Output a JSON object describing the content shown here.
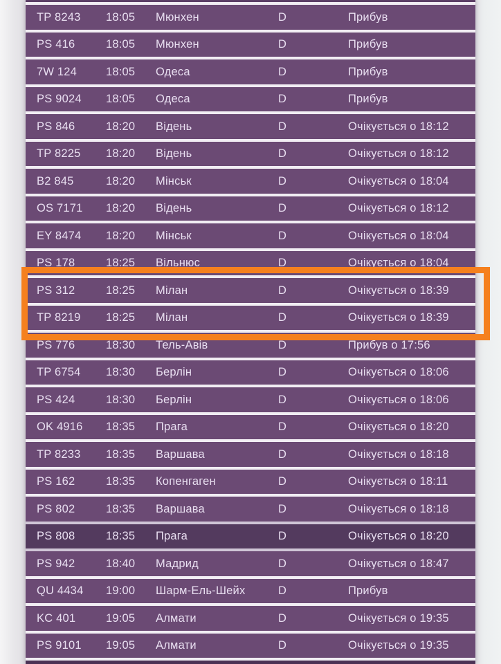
{
  "app": {
    "description": "Airport arrivals timetable (Ukrainian)",
    "language": "uk"
  },
  "colors": {
    "page-bg": "#e9e8eb",
    "row-purple": "#6b4a74",
    "row-selected": "#533a5e",
    "row-dark": "#5c3f66",
    "row-bottom": "#4b3255",
    "sep": "#f1edf3",
    "sep-dim": "#cfc5d6",
    "text-light": "#e8def0",
    "accent-orange": "#f5801e"
  },
  "highlight": {
    "note": "orange annotation rectangle around the two Milan flights",
    "rows": [
      "PS 312",
      "TP 8219"
    ]
  },
  "table": {
    "columns": [
      "flight",
      "time",
      "city",
      "terminal",
      "status"
    ],
    "rows": [
      {
        "flight": "TP 8243",
        "time": "18:05",
        "city": "Мюнхен",
        "terminal": "D",
        "status": "Прибув"
      },
      {
        "flight": "PS 416",
        "time": "18:05",
        "city": "Мюнхен",
        "terminal": "D",
        "status": "Прибув"
      },
      {
        "flight": "7W 124",
        "time": "18:05",
        "city": "Одеса",
        "terminal": "D",
        "status": "Прибув"
      },
      {
        "flight": "PS 9024",
        "time": "18:05",
        "city": "Одеса",
        "terminal": "D",
        "status": "Прибув"
      },
      {
        "flight": "PS 846",
        "time": "18:20",
        "city": "Відень",
        "terminal": "D",
        "status": "Очікується о 18:12"
      },
      {
        "flight": "TP 8225",
        "time": "18:20",
        "city": "Відень",
        "terminal": "D",
        "status": "Очікується о 18:12"
      },
      {
        "flight": "B2 845",
        "time": "18:20",
        "city": "Мінськ",
        "terminal": "D",
        "status": "Очікується о 18:04"
      },
      {
        "flight": "OS 7171",
        "time": "18:20",
        "city": "Відень",
        "terminal": "D",
        "status": "Очікується о 18:12"
      },
      {
        "flight": "EY 8474",
        "time": "18:20",
        "city": "Мінськ",
        "terminal": "D",
        "status": "Очікується о 18:04"
      },
      {
        "flight": "PS 178",
        "time": "18:25",
        "city": "Вільнюс",
        "terminal": "D",
        "status": "Очікується о 18:04"
      },
      {
        "flight": "PS 312",
        "time": "18:25",
        "city": "Мілан",
        "terminal": "D",
        "status": "Очікується о 18:39",
        "highlighted": true
      },
      {
        "flight": "TP 8219",
        "time": "18:25",
        "city": "Мілан",
        "terminal": "D",
        "status": "Очікується о 18:39",
        "highlighted": true
      },
      {
        "flight": "PS 776",
        "time": "18:30",
        "city": "Тель-Авів",
        "terminal": "D",
        "status": "Прибув о 17:56"
      },
      {
        "flight": "TP 6754",
        "time": "18:30",
        "city": "Берлін",
        "terminal": "D",
        "status": "Очікується о 18:06"
      },
      {
        "flight": "PS 424",
        "time": "18:30",
        "city": "Берлін",
        "terminal": "D",
        "status": "Очікується о 18:06"
      },
      {
        "flight": "OK 4916",
        "time": "18:35",
        "city": "Прага",
        "terminal": "D",
        "status": "Очікується о 18:20"
      },
      {
        "flight": "TP 8233",
        "time": "18:35",
        "city": "Варшава",
        "terminal": "D",
        "status": "Очікується о 18:18"
      },
      {
        "flight": "PS 162",
        "time": "18:35",
        "city": "Копенгаген",
        "terminal": "D",
        "status": "Очікується о 18:11"
      },
      {
        "flight": "PS 802",
        "time": "18:35",
        "city": "Варшава",
        "terminal": "D",
        "status": "Очікується о 18:18"
      },
      {
        "flight": "PS 808",
        "time": "18:35",
        "city": "Прага",
        "terminal": "D",
        "status": "Очікується о 18:20",
        "dark": true
      },
      {
        "flight": "PS 942",
        "time": "18:40",
        "city": "Мадрид",
        "terminal": "D",
        "status": "Очікується о 18:47"
      },
      {
        "flight": "QU 4434",
        "time": "19:00",
        "city": "Шарм-Ель-Шейх",
        "terminal": "D",
        "status": "Прибув"
      },
      {
        "flight": "KC 401",
        "time": "19:05",
        "city": "Алмати",
        "terminal": "D",
        "status": "Очікується о 19:35"
      },
      {
        "flight": "PS 9101",
        "time": "19:05",
        "city": "Алмати",
        "terminal": "D",
        "status": "Очікується о 19:35"
      }
    ]
  }
}
